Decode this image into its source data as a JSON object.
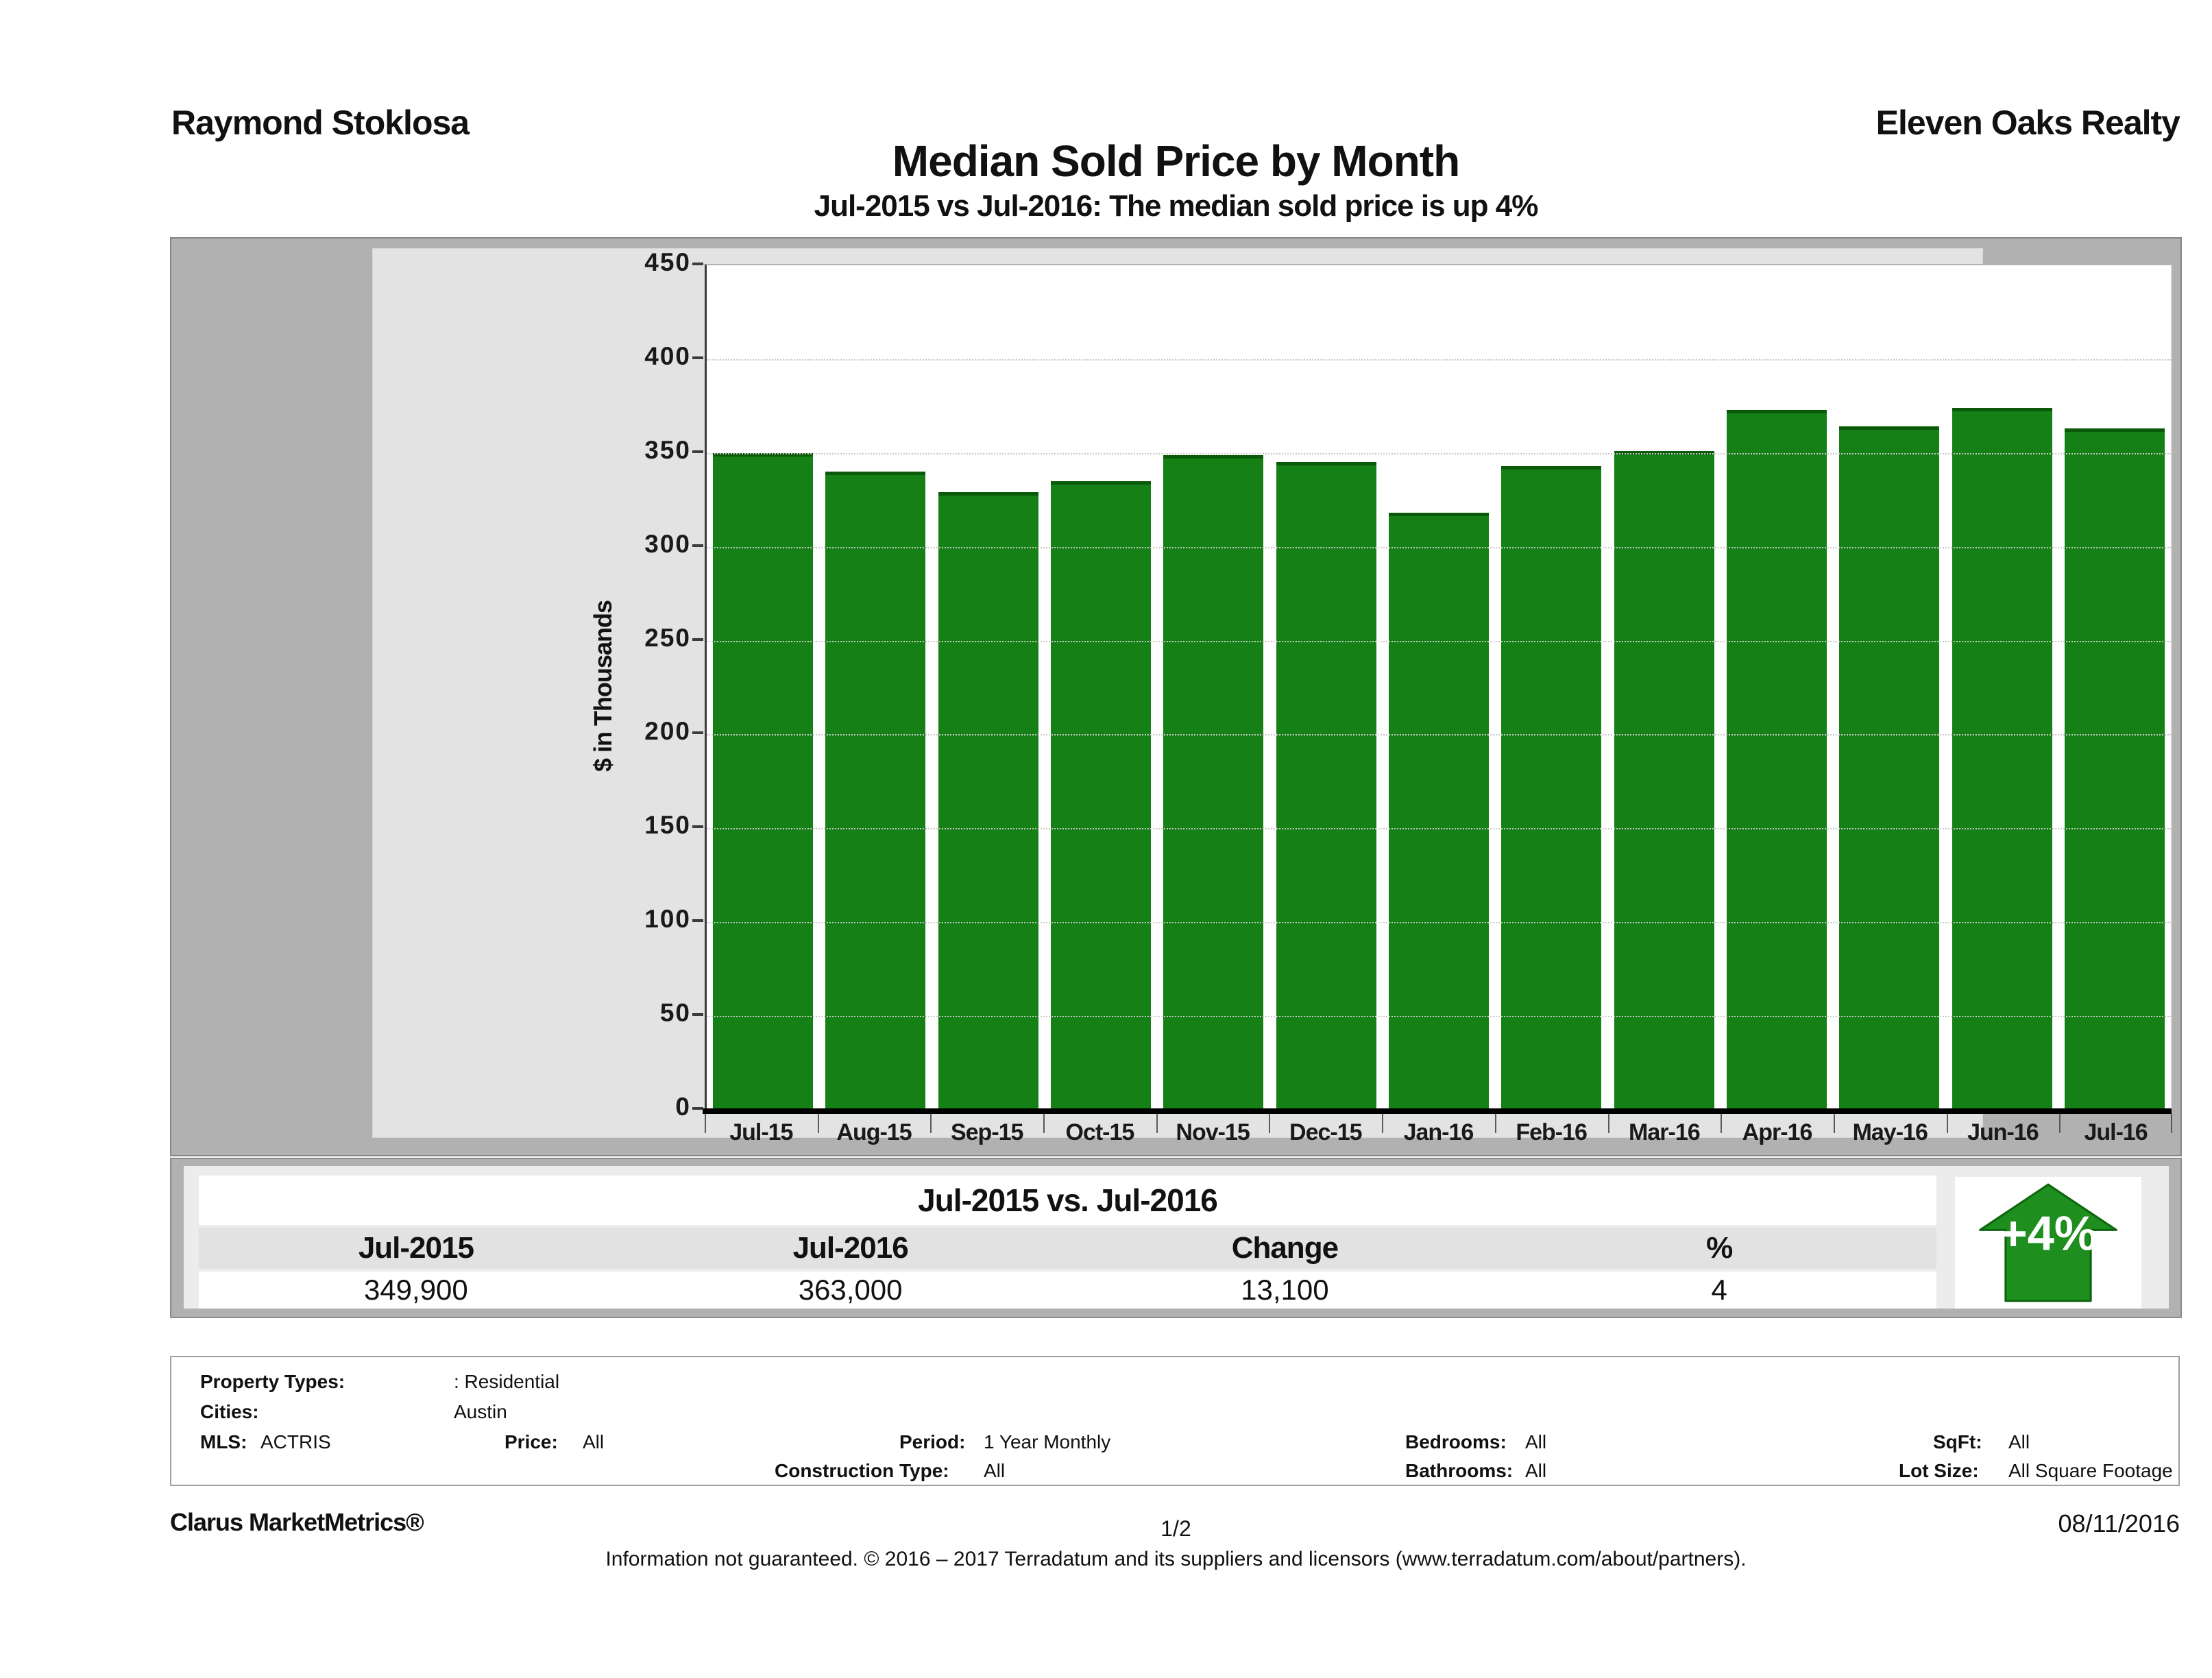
{
  "header": {
    "agent": "Raymond Stoklosa",
    "company": "Eleven Oaks Realty",
    "title": "Median Sold Price by Month",
    "subtitle": "Jul-2015 vs Jul-2016: The median sold price is up 4%"
  },
  "chart_data": {
    "type": "bar",
    "title": "Median Sold Price by Month",
    "categories": [
      "Jul-15",
      "Aug-15",
      "Sep-15",
      "Oct-15",
      "Nov-15",
      "Dec-15",
      "Jan-16",
      "Feb-16",
      "Mar-16",
      "Apr-16",
      "May-16",
      "Jun-16",
      "Jul-16"
    ],
    "values": [
      349.9,
      340,
      329,
      335,
      349,
      345,
      318,
      343,
      351,
      373,
      364,
      374,
      363
    ],
    "unit": "thousands of dollars",
    "xlabel": "",
    "ylabel": "$ in Thousands",
    "ylim": [
      0,
      450
    ],
    "ytick_step": 50,
    "grid": "horizontal-dotted",
    "legend": "none",
    "bar_color": "#158015",
    "bar_top_color": "#0a5a0a"
  },
  "summary": {
    "title": "Jul-2015 vs. Jul-2016",
    "columns": [
      "Jul-2015",
      "Jul-2016",
      "Change",
      "%"
    ],
    "values": [
      "349,900",
      "363,000",
      "13,100",
      "4"
    ],
    "badge": "+4%",
    "badge_color": "#1e8e1e"
  },
  "filters": {
    "property_types": {
      "label": "Property Types:",
      "value": ": Residential"
    },
    "cities": {
      "label": "Cities:",
      "value": "Austin"
    },
    "mls": {
      "label": "MLS:",
      "value": "ACTRIS"
    },
    "price": {
      "label": "Price:",
      "value": "All"
    },
    "period": {
      "label": "Period:",
      "value": "1 Year Monthly"
    },
    "bedrooms": {
      "label": "Bedrooms:",
      "value": "All"
    },
    "sqft": {
      "label": "SqFt:",
      "value": "All"
    },
    "construction_type": {
      "label": "Construction Type:",
      "value": "All"
    },
    "bathrooms": {
      "label": "Bathrooms:",
      "value": "All"
    },
    "lot_size": {
      "label": "Lot Size:",
      "value": "All Square Footage"
    }
  },
  "footer": {
    "product": "Clarus MarketMetrics®",
    "page": "1/2",
    "date": "08/11/2016",
    "disclaimer": "Information not guaranteed. © 2016 – 2017 Terradatum and its suppliers and licensors (www.terradatum.com/about/partners)."
  }
}
